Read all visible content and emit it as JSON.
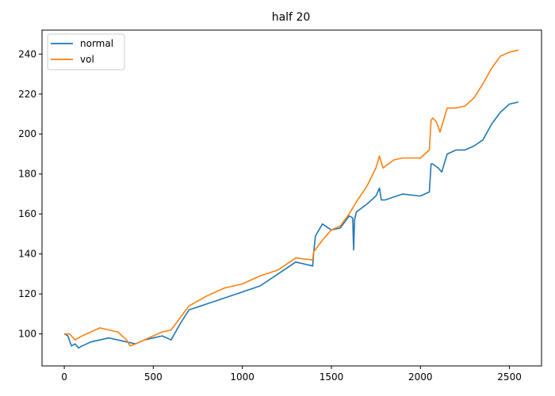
{
  "chart_data": {
    "type": "line",
    "title": "half 20",
    "xlabel": "",
    "ylabel": "",
    "xlim": [
      -125,
      2680
    ],
    "ylim": [
      84,
      252
    ],
    "xticks": [
      0,
      500,
      1000,
      1500,
      2000,
      2500
    ],
    "yticks": [
      100,
      120,
      140,
      160,
      180,
      200,
      220,
      240
    ],
    "grid": false,
    "legend_position": "top-left",
    "series": [
      {
        "name": "normal",
        "color": "#1f77b4",
        "x": [
          0,
          20,
          40,
          60,
          80,
          100,
          150,
          200,
          250,
          300,
          350,
          400,
          450,
          500,
          550,
          600,
          650,
          700,
          800,
          900,
          1000,
          1100,
          1200,
          1300,
          1395,
          1400,
          1410,
          1450,
          1500,
          1550,
          1600,
          1620,
          1625,
          1630,
          1640,
          1700,
          1750,
          1770,
          1780,
          1800,
          1900,
          2000,
          2050,
          2060,
          2070,
          2100,
          2120,
          2140,
          2150,
          2200,
          2250,
          2300,
          2350,
          2400,
          2450,
          2500,
          2550
        ],
        "y": [
          100,
          99,
          94,
          95,
          93,
          94,
          96,
          97,
          98,
          97,
          96,
          95,
          97,
          98,
          99,
          97,
          105,
          112,
          115,
          118,
          121,
          124,
          130,
          136,
          134,
          140,
          149,
          155,
          152,
          153,
          159,
          158,
          142,
          157,
          161,
          165,
          169,
          173,
          167,
          167,
          170,
          169,
          171,
          185,
          185,
          183,
          181,
          187,
          190,
          192,
          192,
          194,
          197,
          205,
          211,
          215,
          216
        ]
      },
      {
        "name": "vol",
        "color": "#ff7f0e",
        "x": [
          0,
          30,
          60,
          100,
          150,
          200,
          250,
          300,
          350,
          370,
          400,
          450,
          500,
          550,
          600,
          650,
          700,
          800,
          900,
          1000,
          1100,
          1200,
          1300,
          1395,
          1400,
          1450,
          1500,
          1550,
          1600,
          1640,
          1700,
          1750,
          1770,
          1790,
          1850,
          1900,
          2000,
          2050,
          2060,
          2070,
          2090,
          2110,
          2150,
          2200,
          2250,
          2300,
          2350,
          2400,
          2450,
          2500,
          2550
        ],
        "y": [
          100,
          100,
          97,
          99,
          101,
          103,
          102,
          101,
          97,
          94,
          95,
          97,
          99,
          101,
          102,
          108,
          114,
          119,
          123,
          125,
          129,
          132,
          138,
          137,
          141,
          147,
          152,
          154,
          160,
          166,
          174,
          183,
          189,
          183,
          187,
          188,
          188,
          192,
          207,
          208,
          206,
          201,
          213,
          213,
          214,
          218,
          225,
          233,
          239,
          241,
          242
        ]
      }
    ]
  }
}
